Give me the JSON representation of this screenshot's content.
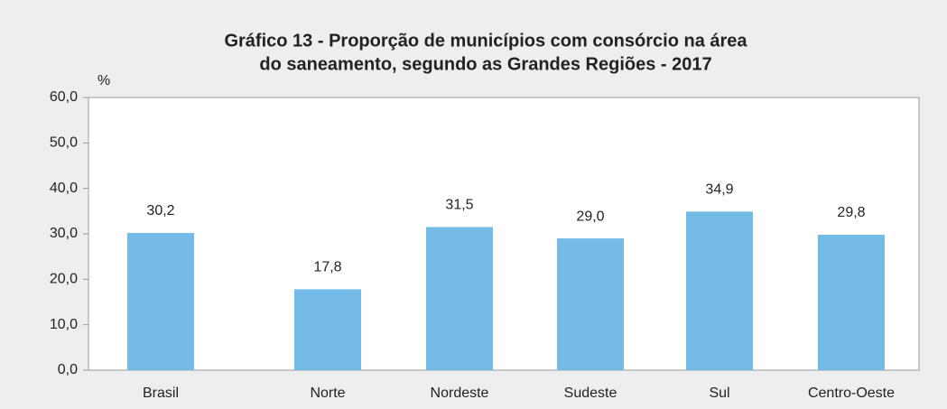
{
  "chart_data": {
    "type": "bar",
    "title": [
      "Gráfico 13 - Proporção de municípios com consórcio na área",
      "do saneamento, segundo as Grandes Regiões - 2017"
    ],
    "y_label": "%",
    "categories": [
      "Brasil",
      "Norte",
      "Nordeste",
      "Sudeste",
      "Sul",
      "Centro-Oeste"
    ],
    "values": [
      30.2,
      17.8,
      31.5,
      29.0,
      34.9,
      29.8
    ],
    "value_labels": [
      "30,2",
      "17,8",
      "31,5",
      "29,0",
      "34,9",
      "29,8"
    ],
    "color": "#74bce7",
    "ylim": [
      0,
      60
    ],
    "yticks": [
      {
        "value": 0,
        "label": "0,0"
      },
      {
        "value": 10,
        "label": "10,0"
      },
      {
        "value": 20,
        "label": "20,0"
      },
      {
        "value": 30,
        "label": "30,0"
      },
      {
        "value": 40,
        "label": "40,0"
      },
      {
        "value": 50,
        "label": "50,0"
      },
      {
        "value": 60,
        "label": "60,0"
      }
    ],
    "grid": false
  }
}
